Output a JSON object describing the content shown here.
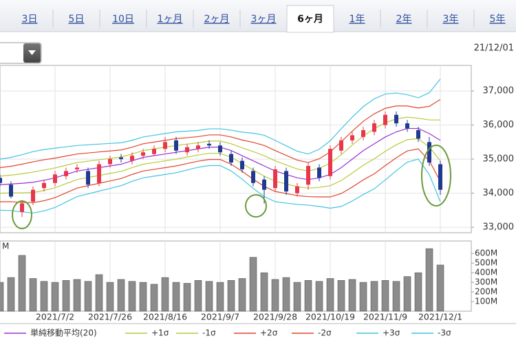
{
  "tabs": [
    "3日",
    "5日",
    "10日",
    "1ヶ月",
    "2ヶ月",
    "3ヶ月",
    "6ヶ月",
    "1年",
    "2年",
    "3年",
    "5年"
  ],
  "selected_tab": 6,
  "date": "21/12/01",
  "chart_data": {
    "type": "candlestick",
    "categories": [
      null,
      null,
      null,
      null,
      null,
      "2021/7/2",
      null,
      null,
      null,
      null,
      "2021/7/26",
      null,
      null,
      null,
      null,
      "2021/8/16",
      null,
      null,
      null,
      null,
      "2021/9/7",
      null,
      null,
      null,
      null,
      "2021/9/28",
      null,
      null,
      null,
      null,
      "2021/10/19",
      null,
      null,
      null,
      null,
      "2021/11/9",
      null,
      null,
      null,
      null,
      "2021/12/1"
    ],
    "ylim": [
      32840,
      37750
    ],
    "yticks": [
      {
        "value": 33000,
        "label": "33,000"
      },
      {
        "value": 34000,
        "label": "34,000"
      },
      {
        "value": 35000,
        "label": "35,000"
      },
      {
        "value": 36000,
        "label": "36,000"
      },
      {
        "value": 37000,
        "label": "37,000"
      }
    ],
    "grid": true,
    "up_color": "#e8364a",
    "down_color": "#1f3a8f",
    "candles": {
      "open": [
        34450,
        34250,
        33450,
        33750,
        34150,
        34300,
        34500,
        34700,
        34650,
        34300,
        34850,
        35050,
        34950,
        35100,
        35150,
        35300,
        35550,
        35200,
        35300,
        35450,
        35400,
        35150,
        34950,
        34650,
        34400,
        34150,
        34650,
        34000,
        34250,
        34750,
        34500,
        35250,
        35550,
        35650,
        35800,
        36000,
        36300,
        36050,
        35850,
        35500,
        34850
      ],
      "high": [
        34550,
        34350,
        33800,
        34200,
        34400,
        34650,
        34750,
        34850,
        34750,
        34950,
        35100,
        35150,
        35200,
        35300,
        35400,
        35650,
        35650,
        35450,
        35500,
        35550,
        35500,
        35250,
        35050,
        34750,
        34500,
        34800,
        34750,
        34300,
        34900,
        34850,
        35400,
        35650,
        35800,
        35950,
        36150,
        36400,
        36400,
        36150,
        35950,
        35650,
        34950
      ],
      "low": [
        34200,
        33850,
        33300,
        33650,
        34050,
        34200,
        34400,
        34600,
        34150,
        34200,
        34750,
        34900,
        34850,
        35000,
        35100,
        35200,
        35150,
        35100,
        35200,
        35300,
        35100,
        34800,
        34600,
        34200,
        33700,
        34050,
        33950,
        33900,
        34100,
        34350,
        34400,
        35150,
        35450,
        35550,
        35700,
        35900,
        35950,
        35800,
        35500,
        34800,
        33950
      ],
      "close": [
        34300,
        33900,
        33700,
        34100,
        34300,
        34550,
        34650,
        34750,
        34250,
        34850,
        35000,
        35000,
        35100,
        35200,
        35300,
        35500,
        35250,
        35350,
        35400,
        35400,
        35200,
        34900,
        34700,
        34300,
        34100,
        34700,
        34050,
        34200,
        34800,
        34450,
        35300,
        35550,
        35700,
        35850,
        36050,
        36300,
        36050,
        35900,
        35600,
        34900,
        34100
      ]
    },
    "series": [
      {
        "name": "単純移動平均(20)",
        "color": "#9b30d0",
        "values": [
          34250,
          34270,
          34290,
          34320,
          34380,
          34450,
          34550,
          34650,
          34700,
          34750,
          34800,
          34850,
          34950,
          35050,
          35100,
          35150,
          35200,
          35250,
          35300,
          35350,
          35350,
          35250,
          35100,
          34950,
          34800,
          34650,
          34550,
          34450,
          34400,
          34450,
          34550,
          34750,
          35000,
          35250,
          35450,
          35650,
          35800,
          35900,
          35900,
          35750,
          35550
        ]
      },
      {
        "name": "+1σ",
        "color": "#b8c93a",
        "values": [
          34500,
          34530,
          34570,
          34620,
          34680,
          34740,
          34820,
          34900,
          34940,
          34980,
          35020,
          35060,
          35150,
          35250,
          35300,
          35350,
          35400,
          35440,
          35480,
          35530,
          35530,
          35450,
          35330,
          35220,
          35100,
          34950,
          34830,
          34710,
          34650,
          34730,
          34880,
          35130,
          35410,
          35680,
          35890,
          36070,
          36180,
          36230,
          36200,
          36150,
          36150
        ]
      },
      {
        "name": "-1σ",
        "color": "#b8c93a",
        "values": [
          34000,
          34010,
          34010,
          34020,
          34080,
          34160,
          34280,
          34400,
          34460,
          34520,
          34580,
          34640,
          34750,
          34850,
          34900,
          34950,
          35000,
          35060,
          35120,
          35170,
          35170,
          35050,
          34870,
          34680,
          34500,
          34350,
          34270,
          34190,
          34150,
          34170,
          34220,
          34370,
          34590,
          34820,
          35010,
          35230,
          35420,
          35570,
          35600,
          35350,
          34950
        ]
      },
      {
        "name": "+2σ",
        "color": "#e0452a",
        "values": [
          34750,
          34790,
          34850,
          34920,
          34980,
          35030,
          35090,
          35150,
          35180,
          35210,
          35240,
          35270,
          35350,
          35450,
          35500,
          35550,
          35600,
          35630,
          35660,
          35710,
          35710,
          35650,
          35560,
          35490,
          35400,
          35250,
          35110,
          34970,
          34900,
          35010,
          35210,
          35510,
          35820,
          36110,
          36330,
          36490,
          36560,
          36560,
          36500,
          36550,
          36750
        ]
      },
      {
        "name": "-2σ",
        "color": "#e0452a",
        "values": [
          33750,
          33750,
          33730,
          33720,
          33780,
          33870,
          34010,
          34150,
          34220,
          34290,
          34360,
          34430,
          34550,
          34650,
          34700,
          34750,
          34800,
          34870,
          34940,
          34990,
          34990,
          34850,
          34640,
          34410,
          34200,
          34050,
          33990,
          33930,
          33900,
          33890,
          33890,
          33990,
          34180,
          34390,
          34570,
          34810,
          35040,
          35240,
          35300,
          34950,
          34350
        ]
      },
      {
        "name": "+3σ",
        "color": "#40c4e0",
        "values": [
          35000,
          35050,
          35130,
          35220,
          35280,
          35320,
          35360,
          35400,
          35420,
          35440,
          35460,
          35480,
          35550,
          35650,
          35700,
          35750,
          35800,
          35820,
          35840,
          35890,
          35890,
          35850,
          35790,
          35760,
          35700,
          35550,
          35390,
          35230,
          35150,
          35290,
          35540,
          35890,
          36230,
          36540,
          36770,
          36910,
          36940,
          36890,
          36800,
          36950,
          37350
        ]
      },
      {
        "name": "-3σ",
        "color": "#40c4e0",
        "values": [
          33500,
          33490,
          33450,
          33420,
          33480,
          33580,
          33740,
          33900,
          33980,
          34060,
          34140,
          34220,
          34350,
          34450,
          34500,
          34550,
          34600,
          34680,
          34760,
          34810,
          34810,
          34650,
          34410,
          34140,
          33900,
          33750,
          33710,
          33670,
          33650,
          33610,
          33560,
          33610,
          33770,
          33960,
          34130,
          34390,
          34660,
          34910,
          35000,
          34550,
          33750
        ]
      }
    ],
    "volume": {
      "unit_label": "M",
      "color": "#8c8c8c",
      "ylim": [
        0,
        730
      ],
      "yticks": [
        {
          "value": 100,
          "label": "100M"
        },
        {
          "value": 200,
          "label": "200M"
        },
        {
          "value": 300,
          "label": "300M"
        },
        {
          "value": 400,
          "label": "400M"
        },
        {
          "value": 500,
          "label": "500M"
        },
        {
          "value": 600,
          "label": "600M"
        }
      ],
      "values": [
        300,
        350,
        580,
        340,
        310,
        300,
        320,
        330,
        310,
        380,
        300,
        330,
        310,
        300,
        280,
        350,
        300,
        290,
        320,
        310,
        300,
        320,
        340,
        560,
        400,
        330,
        350,
        300,
        320,
        310,
        340,
        320,
        330,
        300,
        310,
        320,
        310,
        360,
        400,
        650,
        480
      ]
    }
  }
}
